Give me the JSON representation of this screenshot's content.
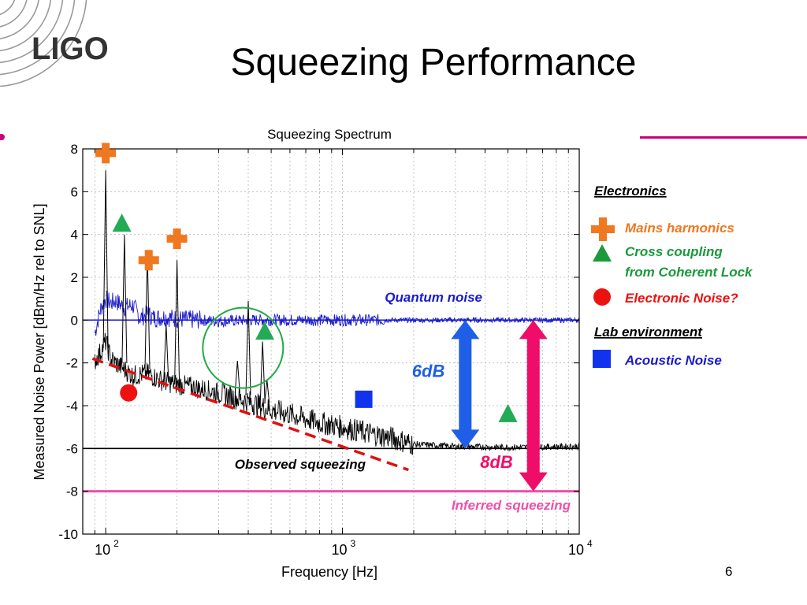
{
  "slide": {
    "title": "Squeezing Performance",
    "logo_text": "LIGO",
    "page_number": "6"
  },
  "chart_data": {
    "type": "line",
    "title": "Squeezing Spectrum",
    "xlabel": "Frequency [Hz]",
    "ylabel": "Measured Noise Power [dBm/Hz rel to SNL]",
    "x_scale": "log",
    "xlim": [
      80,
      10000
    ],
    "ylim": [
      -10,
      8
    ],
    "x_ticks": [
      {
        "value": 100,
        "base": "10",
        "exp": "2"
      },
      {
        "value": 1000,
        "base": "10",
        "exp": "3"
      },
      {
        "value": 10000,
        "base": "10",
        "exp": "4"
      }
    ],
    "y_ticks": [
      8,
      6,
      4,
      2,
      0,
      -2,
      -4,
      -6,
      -8,
      -10
    ],
    "grid": true,
    "colors": {
      "quantum": "#1a1acc",
      "measured": "#000000",
      "inferred": "#ee4fa8",
      "fit": "#dd1111",
      "circle": "#22aa44",
      "blue_arrow": "#1f5fe8",
      "pink_arrow": "#ee0e6a"
    },
    "series": [
      {
        "name": "Quantum noise",
        "color": "#1a1acc",
        "points": [
          [
            90,
            -0.6
          ],
          [
            95,
            0.5
          ],
          [
            100,
            1.0
          ],
          [
            105,
            0.8
          ],
          [
            110,
            0.9
          ],
          [
            120,
            0.6
          ],
          [
            130,
            0.7
          ],
          [
            140,
            0.1
          ],
          [
            150,
            0.3
          ],
          [
            160,
            0.1
          ],
          [
            180,
            0.15
          ],
          [
            200,
            0.05
          ],
          [
            250,
            0.0
          ],
          [
            300,
            -0.05
          ],
          [
            400,
            0.0
          ],
          [
            600,
            0.0
          ],
          [
            1000,
            0.0
          ],
          [
            2000,
            0.0
          ],
          [
            4000,
            0.0
          ],
          [
            10000,
            0.0
          ]
        ]
      },
      {
        "name": "Observed squeezing",
        "color": "#000000",
        "points": [
          [
            90,
            -1.9
          ],
          [
            95,
            -1.5
          ],
          [
            100,
            -1.0
          ],
          [
            105,
            -1.8
          ],
          [
            110,
            -2.0
          ],
          [
            120,
            -2.3
          ],
          [
            130,
            -2.6
          ],
          [
            150,
            -2.5
          ],
          [
            170,
            -2.8
          ],
          [
            200,
            -3.0
          ],
          [
            250,
            -3.2
          ],
          [
            300,
            -3.4
          ],
          [
            400,
            -3.8
          ],
          [
            500,
            -4.2
          ],
          [
            600,
            -4.4
          ],
          [
            800,
            -4.8
          ],
          [
            1000,
            -5.0
          ],
          [
            1300,
            -5.3
          ],
          [
            1600,
            -5.5
          ],
          [
            2000,
            -5.8
          ],
          [
            3000,
            -5.9
          ],
          [
            5000,
            -5.95
          ],
          [
            10000,
            -5.9
          ]
        ]
      }
    ],
    "peaks": [
      {
        "x": 100,
        "y": 7.0,
        "base": -1.3
      },
      {
        "x": 120,
        "y": 4.0,
        "base": -2.0
      },
      {
        "x": 150,
        "y": 3.2,
        "base": -2.3
      },
      {
        "x": 180,
        "y": -0.2,
        "base": -2.8
      },
      {
        "x": 200,
        "y": 2.8,
        "base": -3.0
      },
      {
        "x": 360,
        "y": -1.9,
        "base": -3.4
      },
      {
        "x": 400,
        "y": 0.9,
        "base": -3.5
      },
      {
        "x": 460,
        "y": -1.0,
        "base": -3.9
      },
      {
        "x": 480,
        "y": -2.8,
        "base": -3.9
      }
    ],
    "reference_lines": [
      {
        "name": "-6",
        "y": -6,
        "color": "#000000"
      },
      {
        "name": "0",
        "y": 0,
        "color": "#1a1acc"
      },
      {
        "name": "Inferred squeezing",
        "y": -8,
        "color": "#ee4fa8"
      }
    ],
    "fit_line": {
      "x1": 88,
      "y1": -1.8,
      "x2": 1900,
      "y2": -7.0
    },
    "markers": [
      {
        "shape": "plus",
        "x": 100,
        "y": 7.8,
        "color": "#f07820"
      },
      {
        "shape": "plus",
        "x": 152,
        "y": 2.8,
        "color": "#f07820"
      },
      {
        "shape": "plus",
        "x": 200,
        "y": 3.8,
        "color": "#f07820"
      },
      {
        "shape": "triangle",
        "x": 117,
        "y": 4.5,
        "color": "#22aa55"
      },
      {
        "shape": "triangle",
        "x": 470,
        "y": -0.55,
        "color": "#22aa55"
      },
      {
        "shape": "triangle",
        "x": 5000,
        "y": -4.4,
        "color": "#22aa55"
      },
      {
        "shape": "circle",
        "x": 125,
        "y": -3.4,
        "color": "#ee1111"
      },
      {
        "shape": "square",
        "x": 1230,
        "y": -3.7,
        "color": "#1133ee"
      }
    ],
    "arrows": [
      {
        "label": "6dB",
        "x": 3300,
        "y_top": 0,
        "y_bottom": -6,
        "color": "#1f5fe8"
      },
      {
        "label": "8dB",
        "x": 6400,
        "y_top": 0,
        "y_bottom": -8,
        "color": "#ee0e6a"
      }
    ],
    "annotations": [
      {
        "text": "Quantum noise",
        "color": "#1a1acc"
      },
      {
        "text": "Observed squeezing",
        "color": "#000000"
      },
      {
        "text": "Inferred squeezing",
        "color": "#ee4fa8"
      }
    ]
  },
  "legend": {
    "electronics_heading": "Electronics",
    "mains": "Mains  harmonics",
    "cross_line1": "Cross coupling",
    "cross_line2": "from Coherent Lock",
    "electronic_noise": "Electronic Noise?",
    "lab_heading": "Lab environment",
    "acoustic": "Acoustic Noise",
    "colors": {
      "mains": "#f07820",
      "cross": "#1a9a3a",
      "electronic": "#ee1111",
      "acoustic": "#1a1acc"
    }
  }
}
